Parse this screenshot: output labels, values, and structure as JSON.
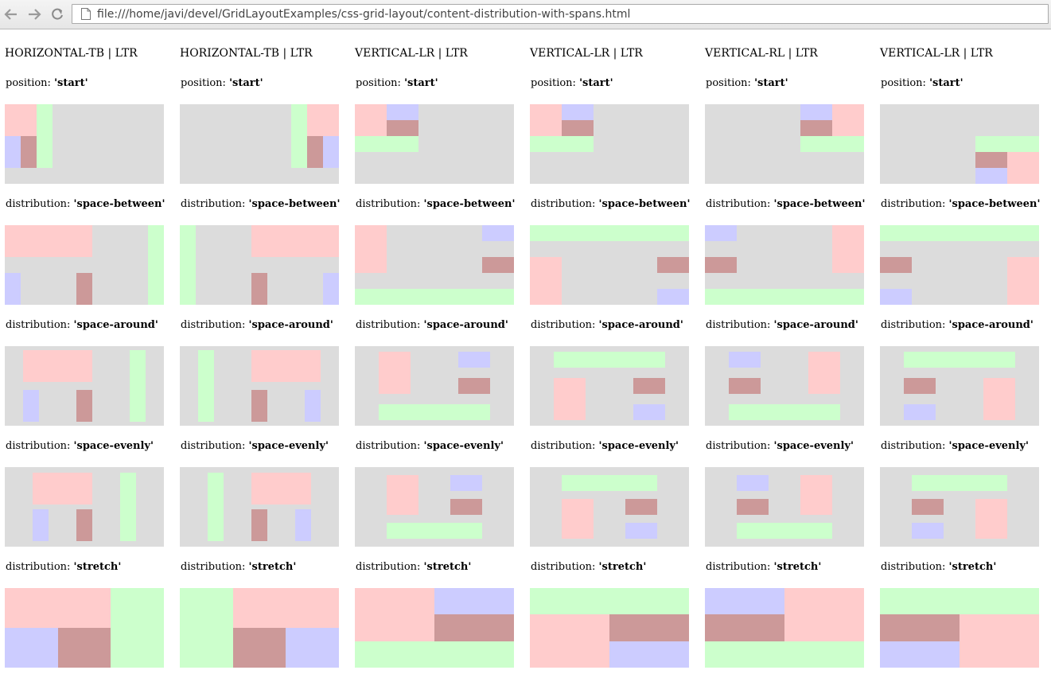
{
  "browser": {
    "url": "file:///home/javi/devel/GridLayoutExamples/css-grid-layout/content-distribution-with-spans.html",
    "icons": {
      "back": "back-arrow-icon",
      "forward": "forward-arrow-icon",
      "reload": "reload-icon",
      "page": "page-icon"
    }
  },
  "colors": {
    "pink": "#ffcccc",
    "blue": "#ccccff",
    "brown": "#cc9999",
    "green": "#ccffcc",
    "grid_background": "#dcdcdc"
  },
  "columns": [
    {
      "title": "HORIZONTAL-TB | LTR"
    },
    {
      "title": "HORIZONTAL-TB | LTR"
    },
    {
      "title": "VERTICAL-LR | LTR"
    },
    {
      "title": "VERTICAL-LR | LTR"
    },
    {
      "title": "VERTICAL-RL | LTR"
    },
    {
      "title": "VERTICAL-LR | LTR"
    }
  ],
  "rows": [
    {
      "prefix": "position: ",
      "value": "'start'"
    },
    {
      "prefix": "distribution: ",
      "value": "'space-between'"
    },
    {
      "prefix": "distribution: ",
      "value": "'space-around'"
    },
    {
      "prefix": "distribution: ",
      "value": "'space-evenly'"
    },
    {
      "prefix": "distribution: ",
      "value": "'stretch'"
    }
  ]
}
